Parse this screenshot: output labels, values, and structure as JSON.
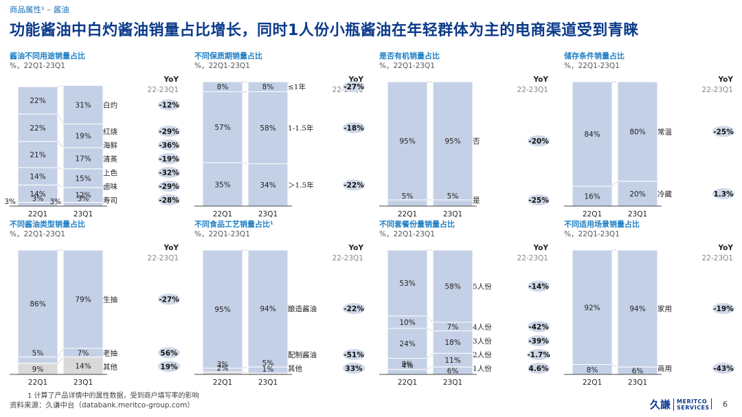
{
  "breadcrumb": "商品属性¹ – 酱油",
  "title": "功能酱油中白灼酱油销量占比增长，同时1人份小瓶酱油在年轻群体为主的电商渠道受到青睐",
  "footnote": "1   计算了产品详情中的属性数据，受到商户填写率的影响",
  "source": "资料来源：久谦中台（databank.meritco-group.com）",
  "logo": {
    "cn": "久謙",
    "en1": "MERITCO",
    "en2": "SERVICES"
  },
  "page_number": "6",
  "colors": {
    "bar": "#c4d0e6",
    "bar_other": "#d9d9d9",
    "yoy_pill": "#cfd8e8",
    "title": "#0b3a8a",
    "panel_title": "#1f7fc4"
  },
  "chart_data": [
    {
      "type": "stacked-bar",
      "title": "酱油不同用途销量占比",
      "subtitle": "%，22Q1-23Q1",
      "yoy_header": "YoY",
      "yoy_range": "22-23Q1",
      "categories": [
        "22Q1",
        "23Q1"
      ],
      "series": [
        {
          "name": "寿司",
          "values": [
            3,
            3
          ],
          "yoy": "-28%"
        },
        {
          "name": "卤味",
          "values": [
            14,
            12
          ],
          "yoy": "-29%"
        },
        {
          "name": "上色",
          "values": [
            14,
            15
          ],
          "yoy": "-32%"
        },
        {
          "name": "清蒸",
          "values": [
            21,
            17
          ],
          "yoy": "-19%"
        },
        {
          "name": "海鲜",
          "values": [
            0,
            0
          ],
          "yoy": "-36%"
        },
        {
          "name": "红烧",
          "values": [
            22,
            19
          ],
          "yoy": "-29%"
        },
        {
          "name": "白灼",
          "values": [
            22,
            31
          ],
          "yoy": "-12%"
        }
      ],
      "extra_labels": [
        "3%",
        "3%"
      ]
    },
    {
      "type": "stacked-bar",
      "title": "不同保质期销量占比",
      "subtitle": "%，22Q1-23Q1",
      "yoy_header": "YoY",
      "yoy_range": "22-23Q1",
      "categories": [
        "22Q1",
        "23Q1"
      ],
      "series": [
        {
          "name": "＞1.5年",
          "values": [
            35,
            34
          ],
          "yoy": "-22%"
        },
        {
          "name": "1-1.5年",
          "values": [
            57,
            58
          ],
          "yoy": "-18%"
        },
        {
          "name": "≤1年",
          "values": [
            8,
            8
          ],
          "yoy": "-27%"
        }
      ]
    },
    {
      "type": "stacked-bar",
      "title": "是否有机销量占比",
      "subtitle": "%，22Q1-23Q1",
      "yoy_header": "YoY",
      "yoy_range": "22-23Q1",
      "categories": [
        "22Q1",
        "23Q1"
      ],
      "series": [
        {
          "name": "是",
          "values": [
            5,
            5
          ],
          "yoy": "-25%"
        },
        {
          "name": "否",
          "values": [
            95,
            95
          ],
          "yoy": "-20%"
        }
      ]
    },
    {
      "type": "stacked-bar",
      "title": "储存条件销量占比",
      "subtitle": "%，22Q1-23Q1",
      "yoy_header": "YoY",
      "yoy_range": "22-23Q1",
      "categories": [
        "22Q1",
        "23Q1"
      ],
      "series": [
        {
          "name": "冷藏",
          "values": [
            16,
            20
          ],
          "yoy": "1.3%"
        },
        {
          "name": "常温",
          "values": [
            84,
            80
          ],
          "yoy": "-25%"
        }
      ]
    },
    {
      "type": "stacked-bar",
      "title": "不同酱油类型销量占比",
      "subtitle": "%，22Q1-23Q1",
      "yoy_header": "YoY",
      "yoy_range": "22-23Q1",
      "categories": [
        "22Q1",
        "23Q1"
      ],
      "series": [
        {
          "name": "其他",
          "values": [
            9,
            14
          ],
          "yoy": "19%"
        },
        {
          "name": "老抽",
          "values": [
            5,
            7
          ],
          "yoy": "56%"
        },
        {
          "name": "生抽",
          "values": [
            86,
            79
          ],
          "yoy": "-27%"
        }
      ]
    },
    {
      "type": "stacked-bar",
      "title": "不同食品工艺销量占比¹",
      "subtitle": "%，22Q1-23Q1",
      "yoy_header": "YoY",
      "yoy_range": "22-23Q1",
      "categories": [
        "22Q1",
        "23Q1"
      ],
      "series": [
        {
          "name": "其他",
          "values": [
            2,
            1
          ],
          "yoy": "33%"
        },
        {
          "name": "配制酱油",
          "values": [
            3,
            5
          ],
          "yoy": "-51%"
        },
        {
          "name": "酿造酱油",
          "values": [
            95,
            94
          ],
          "yoy": "-22%"
        }
      ]
    },
    {
      "type": "stacked-bar",
      "title": "不同套餐份量销量占比",
      "subtitle": "%，22Q1-23Q1",
      "yoy_header": "YoY",
      "yoy_range": "22-23Q1",
      "categories": [
        "22Q1",
        "23Q1"
      ],
      "series": [
        {
          "name": "1人份",
          "values": [
            4,
            6
          ],
          "yoy": "4.6%"
        },
        {
          "name": "2人份",
          "values": [
            9,
            11
          ],
          "yoy": "-1.7%"
        },
        {
          "name": "3人份",
          "values": [
            24,
            18
          ],
          "yoy": "-39%"
        },
        {
          "name": "4人份",
          "values": [
            10,
            7
          ],
          "yoy": "-42%"
        },
        {
          "name": "5人份",
          "values": [
            53,
            58
          ],
          "yoy": "-14%"
        }
      ]
    },
    {
      "type": "stacked-bar",
      "title": "不同适用场景销量占比",
      "subtitle": "%，22Q1-23Q1",
      "yoy_header": "YoY",
      "yoy_range": "22-23Q1",
      "categories": [
        "22Q1",
        "23Q1"
      ],
      "series": [
        {
          "name": "商用",
          "values": [
            8,
            6
          ],
          "yoy": "-43%"
        },
        {
          "name": "家用",
          "values": [
            92,
            94
          ],
          "yoy": "-19%"
        }
      ]
    }
  ]
}
